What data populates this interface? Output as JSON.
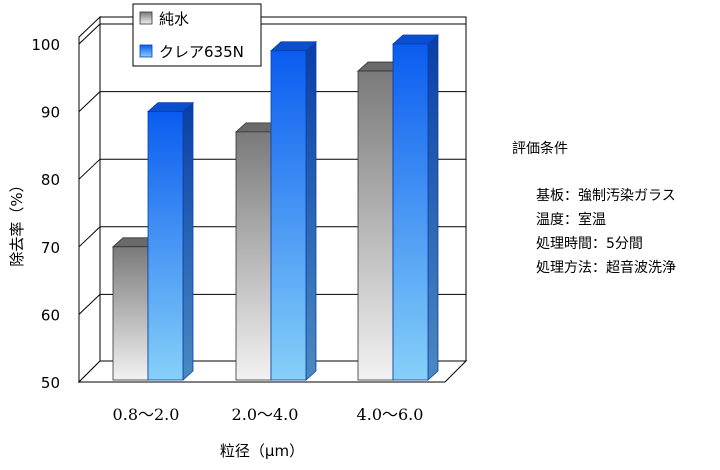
{
  "chart_data": {
    "type": "bar",
    "title": "",
    "xlabel": "粒径（μm）",
    "ylabel": "除去率（%）",
    "categories": [
      "0.8～2.0",
      "2.0～4.0",
      "4.0～6.0"
    ],
    "series": [
      {
        "name": "純水",
        "values": [
          70,
          87,
          96
        ],
        "color": "#8c8c8c"
      },
      {
        "name": "クレア635N",
        "values": [
          90,
          99,
          100
        ],
        "color": "#1a6ef0"
      }
    ],
    "ylim": [
      50,
      100
    ],
    "yticks": [
      50,
      60,
      70,
      80,
      90,
      100
    ],
    "grid": true,
    "legend": "top-left",
    "style": "3d-bar"
  },
  "conditions": {
    "title": "評価条件",
    "lines": [
      "基板：強制汚染ガラス",
      "温度：室温",
      "処理時間：5分間",
      "処理方法：超音波洗浄"
    ]
  }
}
